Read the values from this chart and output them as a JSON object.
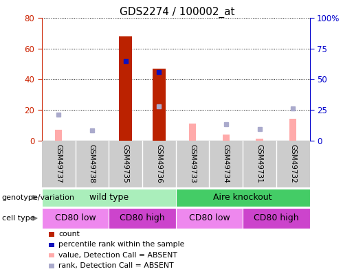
{
  "title": "GDS2274 / 100002_at",
  "samples": [
    "GSM49737",
    "GSM49738",
    "GSM49735",
    "GSM49736",
    "GSM49733",
    "GSM49734",
    "GSM49731",
    "GSM49732"
  ],
  "count_values": [
    null,
    null,
    68,
    47,
    null,
    null,
    null,
    null
  ],
  "percentile_rank_present": [
    null,
    null,
    65,
    56,
    null,
    null,
    null,
    null
  ],
  "value_absent": [
    7,
    null,
    null,
    null,
    11,
    4,
    1,
    14
  ],
  "rank_absent": [
    21,
    8,
    null,
    28,
    null,
    13,
    9,
    26
  ],
  "ylim_left": [
    0,
    80
  ],
  "ylim_right": [
    0,
    100
  ],
  "left_ticks": [
    0,
    20,
    40,
    60,
    80
  ],
  "right_ticks": [
    0,
    25,
    50,
    75,
    100
  ],
  "right_tick_labels": [
    "0",
    "25",
    "50",
    "75",
    "100%"
  ],
  "count_color": "#bb2200",
  "rank_present_color": "#1111bb",
  "value_absent_color": "#ffaaaa",
  "rank_absent_color": "#aaaacc",
  "genotype_groups": [
    {
      "label": "wild type",
      "start": 0,
      "end": 4,
      "color": "#aaeebb"
    },
    {
      "label": "Aire knockout",
      "start": 4,
      "end": 8,
      "color": "#44cc66"
    }
  ],
  "cell_type_groups": [
    {
      "label": "CD80 low",
      "start": 0,
      "end": 2,
      "color": "#ee88ee"
    },
    {
      "label": "CD80 high",
      "start": 2,
      "end": 4,
      "color": "#cc44cc"
    },
    {
      "label": "CD80 low",
      "start": 4,
      "end": 6,
      "color": "#ee88ee"
    },
    {
      "label": "CD80 high",
      "start": 6,
      "end": 8,
      "color": "#cc44cc"
    }
  ],
  "legend_items": [
    {
      "label": "count",
      "color": "#bb2200"
    },
    {
      "label": "percentile rank within the sample",
      "color": "#1111bb"
    },
    {
      "label": "value, Detection Call = ABSENT",
      "color": "#ffaaaa"
    },
    {
      "label": "rank, Detection Call = ABSENT",
      "color": "#aaaacc"
    }
  ],
  "left_label_color": "#cc2200",
  "right_label_color": "#0000cc",
  "bg_color": "#ffffff",
  "sample_bg_color": "#cccccc",
  "plot_bg_color": "#ffffff"
}
